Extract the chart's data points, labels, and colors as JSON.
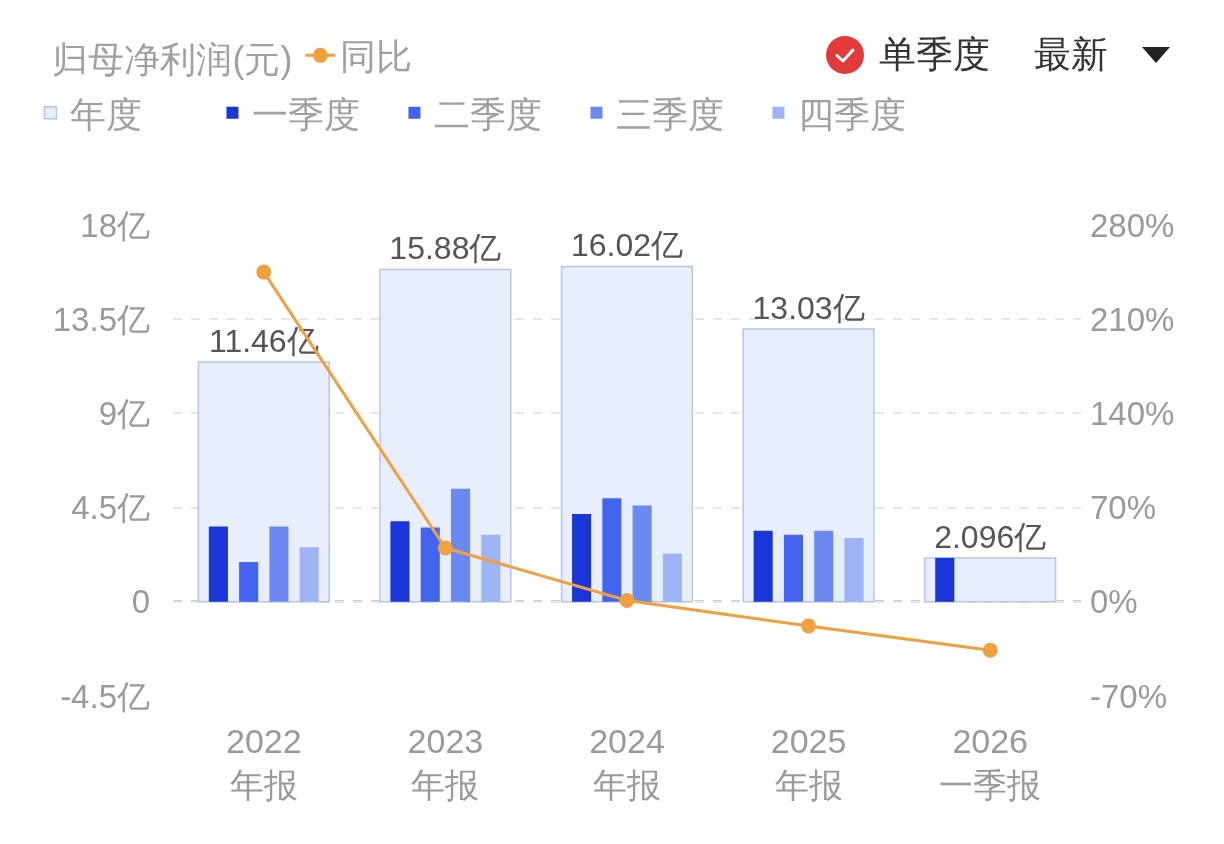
{
  "chart_data": {
    "type": "bar",
    "legend_title": "归母净利润(元)",
    "annotations": [
      "单季度",
      "最新"
    ],
    "categories": [
      "2022\n年报",
      "2023\n年报",
      "2024\n年报",
      "2025\n年报",
      "2026\n一季报"
    ],
    "series": [
      {
        "name": "年度",
        "color": "#e8eefc",
        "values": [
          11.46,
          15.88,
          16.02,
          13.03,
          2.096
        ],
        "value_labels": [
          "11.46亿",
          "15.88亿",
          "16.02亿",
          "13.03亿",
          "2.096亿"
        ]
      },
      {
        "name": "一季度",
        "color": "#1a36d8",
        "values": [
          3.6,
          3.85,
          4.2,
          3.4,
          2.1
        ]
      },
      {
        "name": "二季度",
        "color": "#4264f0",
        "values": [
          1.9,
          3.55,
          4.95,
          3.2,
          null
        ]
      },
      {
        "name": "三季度",
        "color": "#6b89f0",
        "values": [
          3.6,
          5.4,
          4.6,
          3.4,
          null
        ]
      },
      {
        "name": "四季度",
        "color": "#9db3f6",
        "values": [
          2.6,
          3.2,
          2.3,
          3.05,
          null
        ]
      },
      {
        "name": "同比",
        "type": "line",
        "axis": "y2",
        "color": "#f0a03c",
        "values": [
          245,
          40,
          1,
          -18,
          -36
        ]
      }
    ],
    "ylim": [
      -4.5,
      18
    ],
    "yticks": [
      {
        "value": -4.5,
        "label": "-4.5亿"
      },
      0,
      {
        "value": 4.5,
        "label": "4.5亿"
      },
      {
        "value": 9,
        "label": "9亿"
      },
      {
        "value": 13.5,
        "label": "13.5亿"
      },
      {
        "value": 18,
        "label": "18亿"
      }
    ],
    "y2lim": [
      -70,
      280
    ],
    "y2ticks": [
      {
        "value": -70,
        "label": "-70%"
      },
      {
        "value": 0,
        "label": "0%"
      },
      {
        "value": 70,
        "label": "70%"
      },
      {
        "value": 140,
        "label": "140%"
      },
      {
        "value": 210,
        "label": "210%"
      },
      {
        "value": 280,
        "label": "280%"
      }
    ],
    "grid": "y",
    "legend": "top left",
    "marker": "circle",
    "line_style": "solid",
    "ref_lines": [
      {
        "axis": "y",
        "value": 0,
        "color": "#9a9a9a",
        "line_style": "dashed"
      }
    ]
  }
}
